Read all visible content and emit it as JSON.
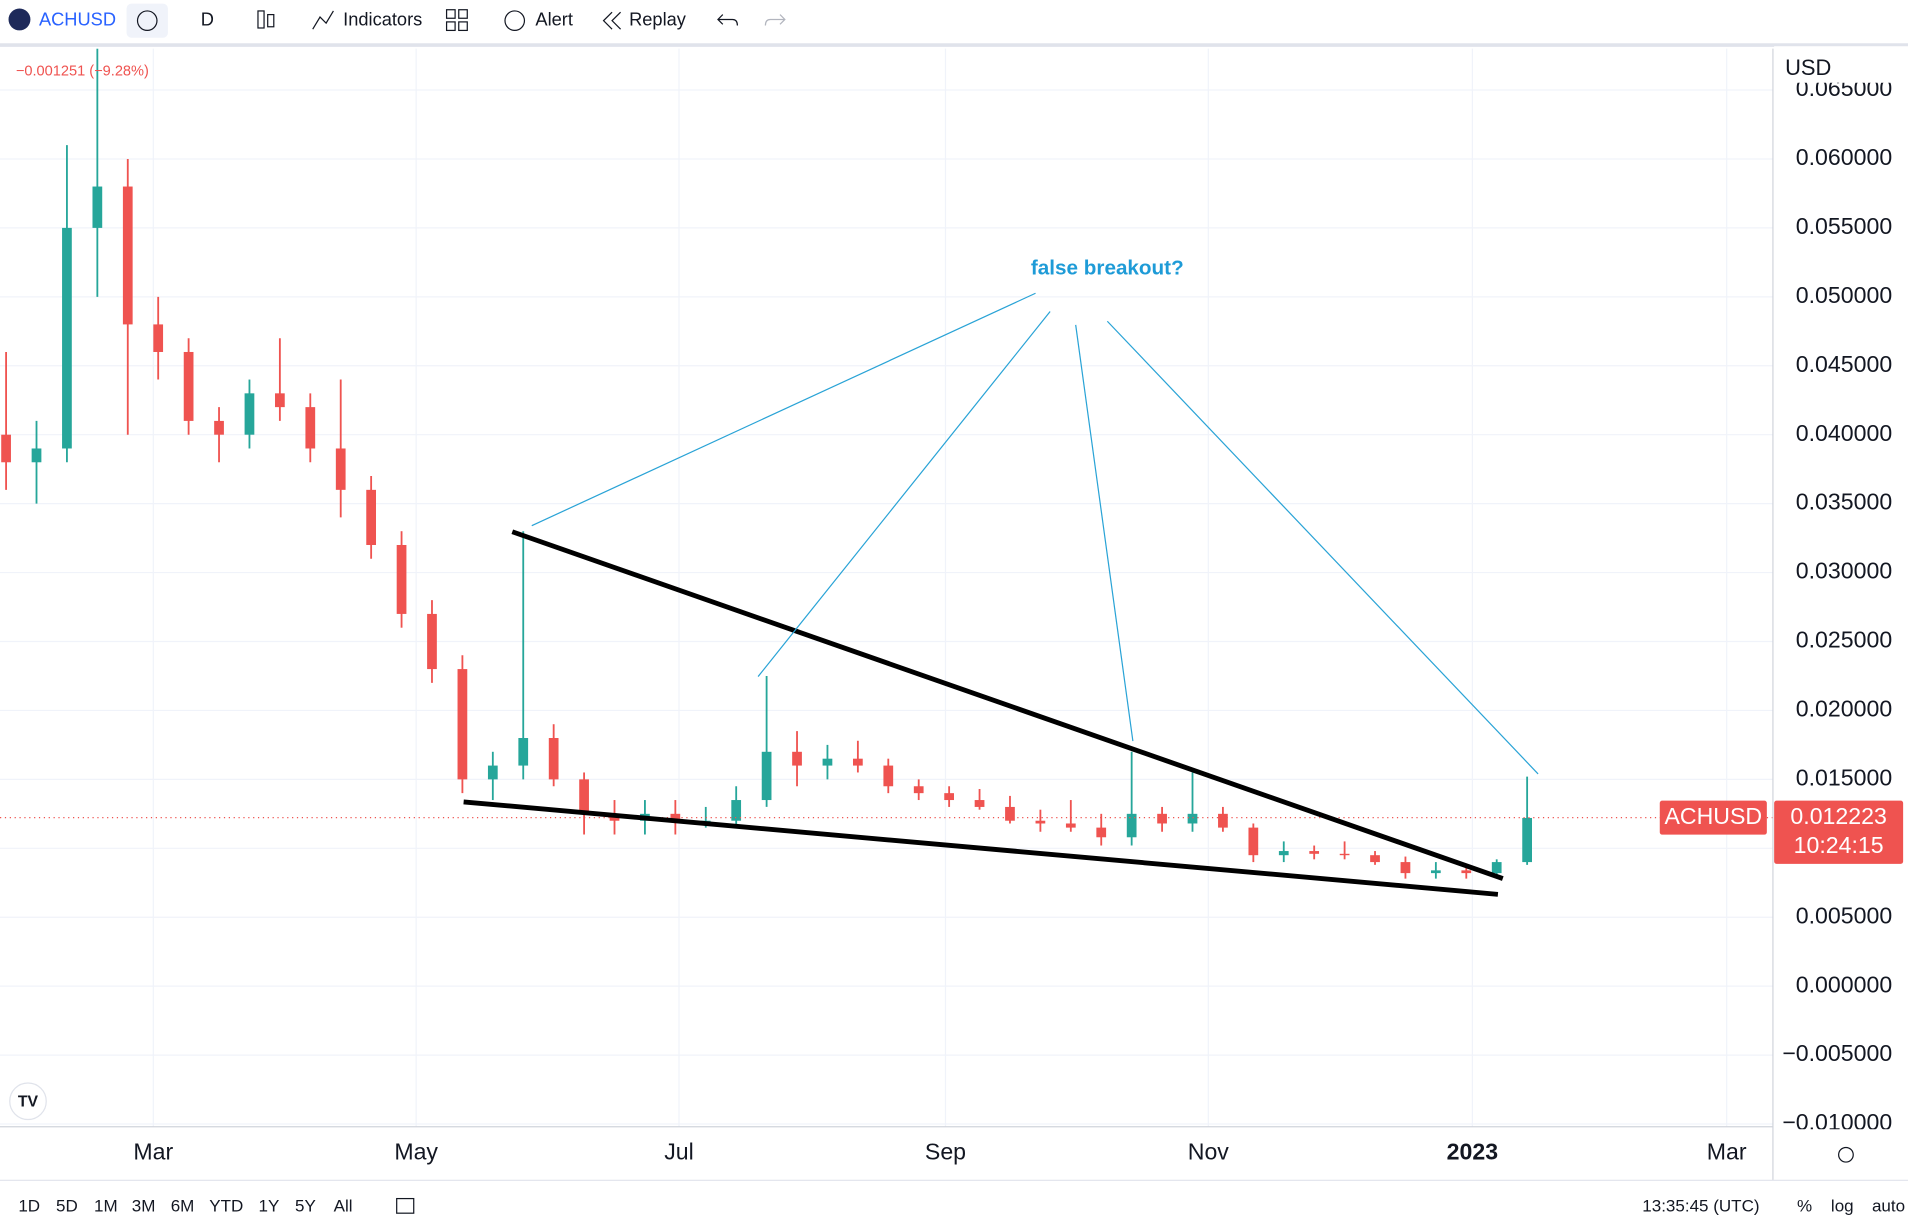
{
  "toolbar": {
    "symbol": "ACHUSD",
    "interval": "D",
    "indicators": "Indicators",
    "alert": "Alert",
    "replay": "Replay"
  },
  "chart_data": {
    "type": "candlestick",
    "change_label": "−0.001251 (−9.28%)",
    "currency": "USD",
    "annotation": "false breakout?",
    "symbol_badge": "ACHUSD",
    "last_price": 0.012223,
    "countdown": "10:24:15",
    "up_color": "#26a69a",
    "down_color": "#ef5350",
    "xtick_labels": [
      "Mar",
      "May",
      "Jul",
      "Sep",
      "Nov",
      "2023",
      "Mar"
    ],
    "ylim": [
      -0.0102,
      0.068
    ],
    "yticks": [
      {
        "value": -0.01,
        "label": "−0.010000"
      },
      {
        "value": -0.005,
        "label": "−0.005000"
      },
      {
        "value": 0,
        "label": "0.000000"
      },
      {
        "value": 0.005,
        "label": "0.005000"
      },
      {
        "value": 0.01,
        "label": "0.010000"
      },
      {
        "value": 0.015,
        "label": "0.015000"
      },
      {
        "value": 0.02,
        "label": "0.020000"
      },
      {
        "value": 0.025,
        "label": "0.025000"
      },
      {
        "value": 0.03,
        "label": "0.030000"
      },
      {
        "value": 0.035,
        "label": "0.035000"
      },
      {
        "value": 0.04,
        "label": "0.040000"
      },
      {
        "value": 0.045,
        "label": "0.045000"
      },
      {
        "value": 0.05,
        "label": "0.050000"
      },
      {
        "value": 0.055,
        "label": "0.055000"
      },
      {
        "value": 0.06,
        "label": "0.060000"
      },
      {
        "value": 0.065,
        "label": "0.065000"
      }
    ],
    "grid": true,
    "open": [
      0.04,
      0.038,
      0.039,
      0.055,
      0.058,
      0.048,
      0.046,
      0.041,
      0.04,
      0.043,
      0.042,
      0.039,
      0.036,
      0.032,
      0.027,
      0.023,
      0.015,
      0.016,
      0.018,
      0.015,
      0.0125,
      0.012,
      0.0125,
      0.012,
      0.012,
      0.0135,
      0.017,
      0.016,
      0.0165,
      0.016,
      0.0145,
      0.014,
      0.0135,
      0.013,
      0.012,
      0.0118,
      0.0115,
      0.0108,
      0.0125,
      0.0118,
      0.0125,
      0.0115,
      0.0095,
      0.0098,
      0.0096,
      0.0095,
      0.009,
      0.0082,
      0.0084,
      0.0082,
      0.009
    ],
    "high": [
      0.046,
      0.041,
      0.061,
      0.068,
      0.06,
      0.05,
      0.047,
      0.042,
      0.044,
      0.047,
      0.043,
      0.044,
      0.037,
      0.033,
      0.028,
      0.024,
      0.017,
      0.033,
      0.019,
      0.0155,
      0.0135,
      0.0135,
      0.0135,
      0.013,
      0.0145,
      0.0225,
      0.0185,
      0.0175,
      0.0178,
      0.0165,
      0.015,
      0.0145,
      0.0143,
      0.0138,
      0.0128,
      0.0135,
      0.0125,
      0.017,
      0.013,
      0.0155,
      0.013,
      0.0118,
      0.0105,
      0.0102,
      0.0105,
      0.0098,
      0.0094,
      0.009,
      0.0087,
      0.0092,
      0.0152
    ],
    "low": [
      0.036,
      0.035,
      0.038,
      0.05,
      0.04,
      0.044,
      0.04,
      0.038,
      0.039,
      0.041,
      0.038,
      0.034,
      0.031,
      0.026,
      0.022,
      0.014,
      0.0135,
      0.015,
      0.0145,
      0.011,
      0.011,
      0.011,
      0.011,
      0.0115,
      0.0115,
      0.013,
      0.0145,
      0.015,
      0.0155,
      0.014,
      0.0135,
      0.013,
      0.0128,
      0.0118,
      0.0112,
      0.0112,
      0.0102,
      0.0102,
      0.0112,
      0.0112,
      0.0112,
      0.009,
      0.009,
      0.0092,
      0.0092,
      0.0088,
      0.0078,
      0.0078,
      0.0078,
      0.008,
      0.0088
    ],
    "close": [
      0.038,
      0.039,
      0.055,
      0.058,
      0.048,
      0.046,
      0.041,
      0.04,
      0.043,
      0.042,
      0.039,
      0.036,
      0.032,
      0.027,
      0.023,
      0.015,
      0.016,
      0.018,
      0.015,
      0.0125,
      0.012,
      0.0125,
      0.012,
      0.012,
      0.0135,
      0.017,
      0.016,
      0.0165,
      0.016,
      0.0145,
      0.014,
      0.0135,
      0.013,
      0.012,
      0.0118,
      0.0115,
      0.0108,
      0.0125,
      0.0118,
      0.0125,
      0.0115,
      0.0095,
      0.0098,
      0.0096,
      0.0095,
      0.009,
      0.0082,
      0.0084,
      0.0082,
      0.009,
      0.0122
    ]
  },
  "footer": {
    "ranges": [
      "1D",
      "5D",
      "1M",
      "3M",
      "6M",
      "YTD",
      "1Y",
      "5Y",
      "All"
    ],
    "clock": "13:35:45 (UTC)",
    "percent": "%",
    "log": "log",
    "auto": "auto"
  }
}
